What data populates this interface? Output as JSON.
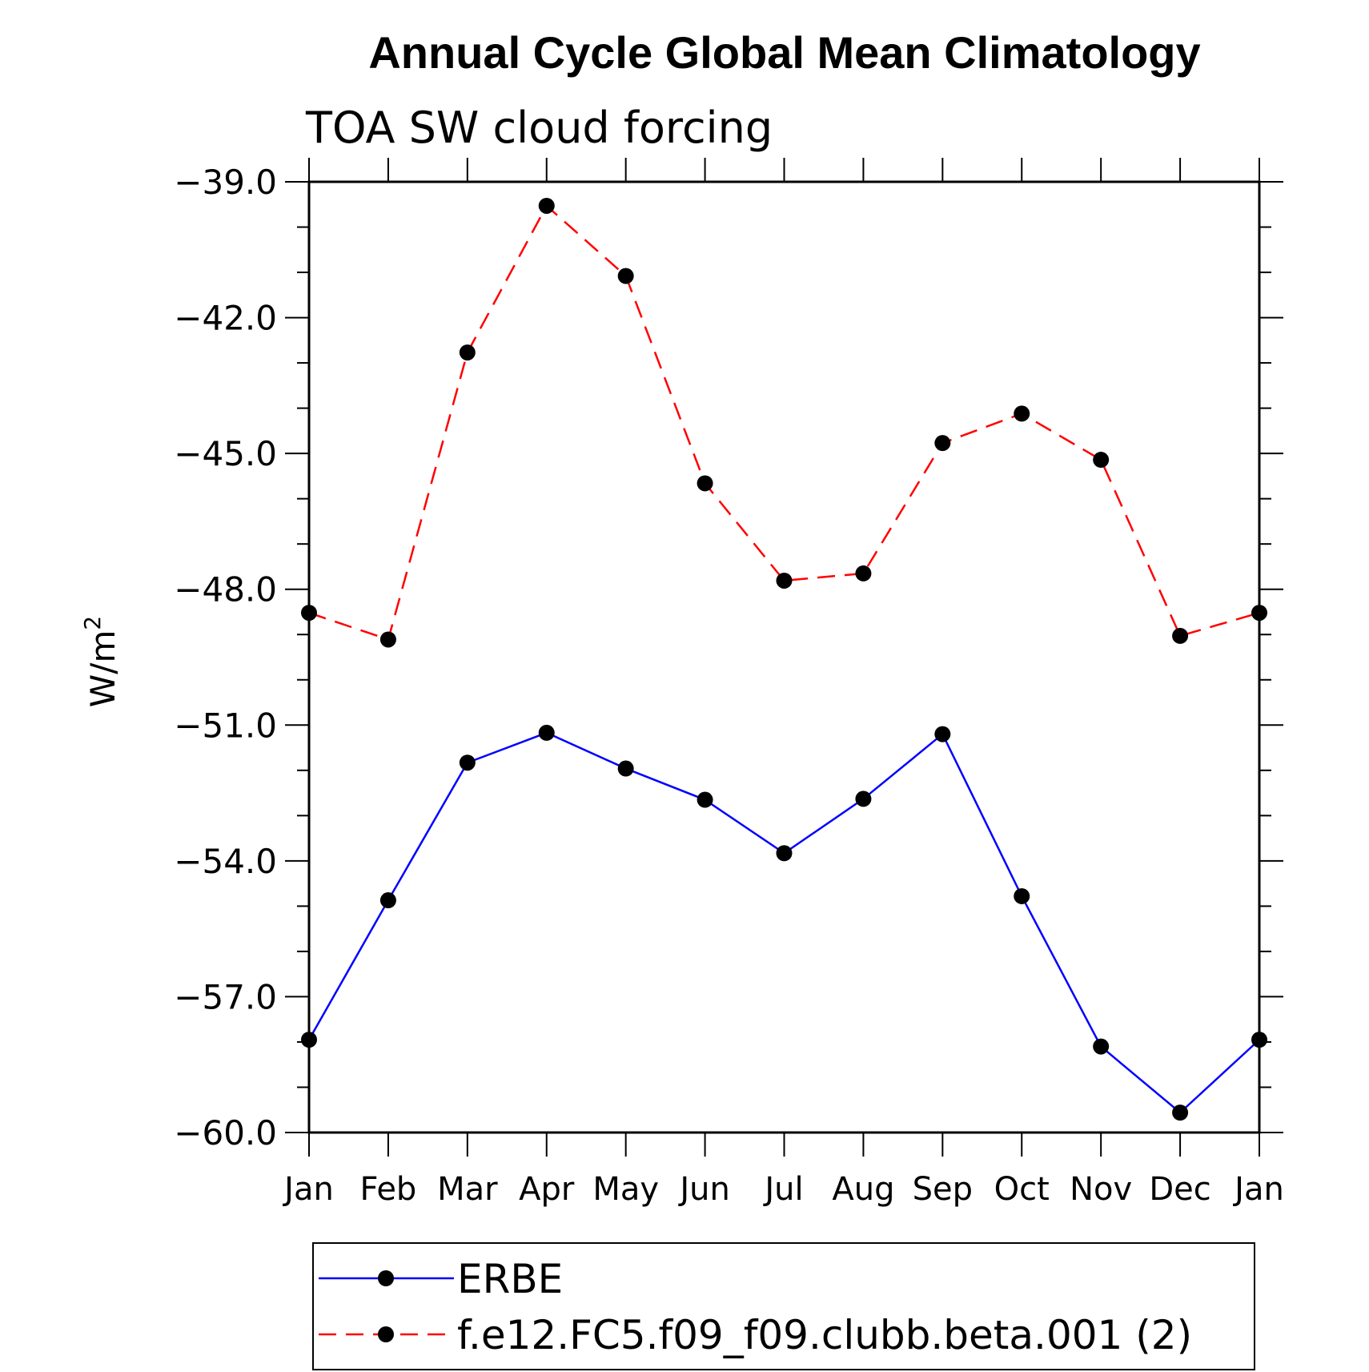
{
  "chart_data": {
    "type": "line",
    "title": "Annual Cycle Global Mean Climatology",
    "subtitle": "TOA SW cloud forcing",
    "ylabel": "W/m",
    "ylabel_superscript": "2",
    "xlabel": "",
    "categories": [
      "Jan",
      "Feb",
      "Mar",
      "Apr",
      "May",
      "Jun",
      "Jul",
      "Aug",
      "Sep",
      "Oct",
      "Nov",
      "Dec",
      "Jan"
    ],
    "ylim": [
      -60.0,
      -39.0
    ],
    "yticks": [
      -39.0,
      -42.0,
      -45.0,
      -48.0,
      -51.0,
      -54.0,
      -57.0,
      -60.0
    ],
    "ytick_labels": [
      "−39.0",
      "−42.0",
      "−45.0",
      "−48.0",
      "−51.0",
      "−54.0",
      "−57.0",
      "−60.0"
    ],
    "grid": false,
    "legend_position": "bottom",
    "series": [
      {
        "name": "ERBE",
        "color": "#0000ff",
        "line_style": "solid",
        "marker": "filled-circle",
        "values": [
          -57.95,
          -54.87,
          -51.83,
          -51.17,
          -51.96,
          -52.65,
          -53.83,
          -52.63,
          -51.2,
          -54.78,
          -58.1,
          -59.56,
          -57.95
        ]
      },
      {
        "name": "f.e12.FC5.f09_f09.clubb.beta.001 (2)",
        "color": "#ff0000",
        "line_style": "dashed",
        "marker": "filled-circle",
        "values": [
          -48.52,
          -49.11,
          -42.77,
          -39.53,
          -41.08,
          -45.66,
          -47.81,
          -47.65,
          -44.77,
          -44.12,
          -45.14,
          -49.03,
          -48.52
        ]
      }
    ]
  }
}
